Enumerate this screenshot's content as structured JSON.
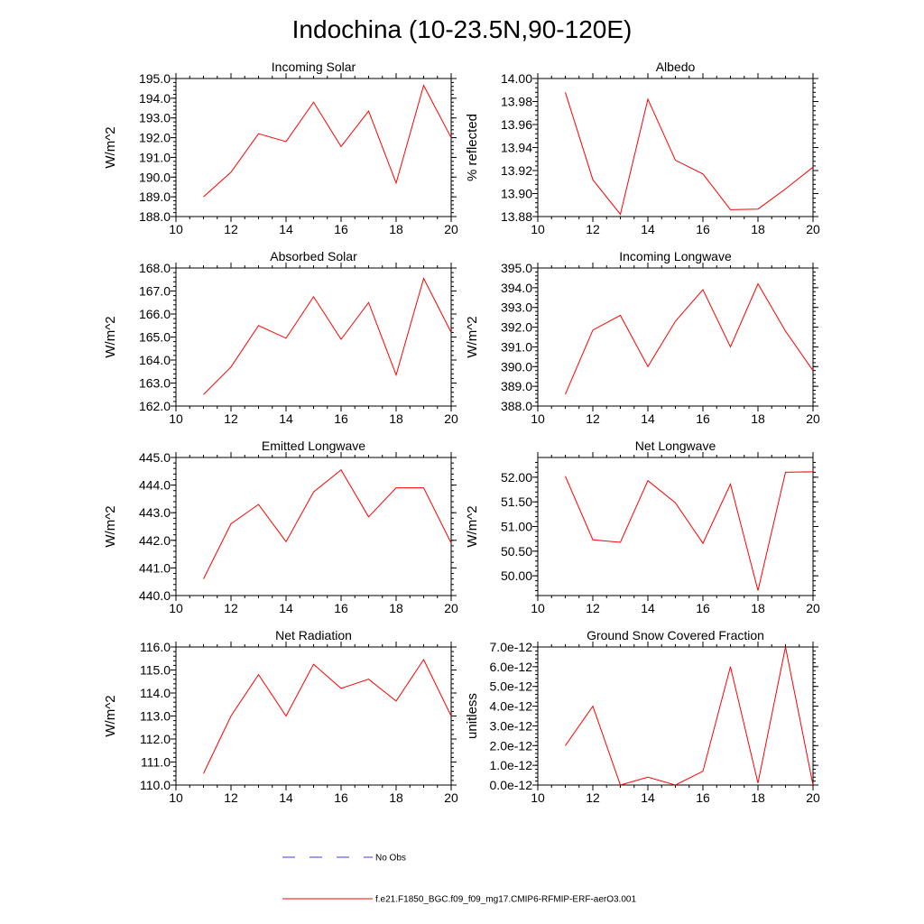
{
  "figure_title": "Indochina (10-23.5N,90-120E)",
  "legend": {
    "obs_label": "No Obs",
    "model_label": "f.e21.F1850_BGC.f09_f09_mg17.CMIP6-RFMIP-ERF-aerO3.001",
    "obs_color": "#3b3bd6",
    "model_color": "#ff0000"
  },
  "chart_data": [
    {
      "type": "line",
      "title": "Incoming Solar",
      "ylabel": "W/m^2",
      "xlabel": "",
      "xlim": [
        10,
        20
      ],
      "ylim": [
        188,
        195
      ],
      "xticks": [
        "10",
        "12",
        "14",
        "16",
        "18",
        "20"
      ],
      "yticks": [
        "188.0",
        "189.0",
        "190.0",
        "191.0",
        "192.0",
        "193.0",
        "194.0",
        "195.0"
      ],
      "x": [
        11,
        12,
        13,
        14,
        15,
        16,
        17,
        18,
        19,
        20
      ],
      "series": [
        {
          "name": "f.e21.F1850_BGC.f09_f09_mg17.CMIP6-RFMIP-ERF-aerO3.001",
          "values": [
            189.0,
            190.25,
            192.2,
            191.8,
            193.8,
            191.55,
            193.35,
            189.7,
            194.65,
            192.0
          ]
        }
      ]
    },
    {
      "type": "line",
      "title": "Albedo",
      "ylabel": "% reflected",
      "xlabel": "",
      "xlim": [
        10,
        20
      ],
      "ylim": [
        13.88,
        14.0
      ],
      "xticks": [
        "10",
        "12",
        "14",
        "16",
        "18",
        "20"
      ],
      "yticks": [
        "13.88",
        "13.90",
        "13.92",
        "13.94",
        "13.96",
        "13.98",
        "14.00"
      ],
      "x": [
        11,
        12,
        13,
        14,
        15,
        16,
        17,
        18,
        19,
        20
      ],
      "series": [
        {
          "name": "f.e21.F1850_BGC.f09_f09_mg17.CMIP6-RFMIP-ERF-aerO3.001",
          "values": [
            13.988,
            13.912,
            13.882,
            13.982,
            13.929,
            13.917,
            13.886,
            13.8865,
            13.904,
            13.923
          ]
        }
      ]
    },
    {
      "type": "line",
      "title": "Absorbed Solar",
      "ylabel": "W/m^2",
      "xlabel": "",
      "xlim": [
        10,
        20
      ],
      "ylim": [
        162,
        168
      ],
      "xticks": [
        "10",
        "12",
        "14",
        "16",
        "18",
        "20"
      ],
      "yticks": [
        "162.0",
        "163.0",
        "164.0",
        "165.0",
        "166.0",
        "167.0",
        "168.0"
      ],
      "x": [
        11,
        12,
        13,
        14,
        15,
        16,
        17,
        18,
        19,
        20
      ],
      "series": [
        {
          "name": "f.e21.F1850_BGC.f09_f09_mg17.CMIP6-RFMIP-ERF-aerO3.001",
          "values": [
            162.5,
            163.7,
            165.5,
            164.95,
            166.75,
            164.9,
            166.5,
            163.35,
            167.55,
            165.2
          ]
        }
      ]
    },
    {
      "type": "line",
      "title": "Incoming Longwave",
      "ylabel": "W/m^2",
      "xlabel": "",
      "xlim": [
        10,
        20
      ],
      "ylim": [
        388,
        395
      ],
      "xticks": [
        "10",
        "12",
        "14",
        "16",
        "18",
        "20"
      ],
      "yticks": [
        "388.0",
        "389.0",
        "390.0",
        "391.0",
        "392.0",
        "393.0",
        "394.0",
        "395.0"
      ],
      "x": [
        11,
        12,
        13,
        14,
        15,
        16,
        17,
        18,
        19,
        20
      ],
      "series": [
        {
          "name": "f.e21.F1850_BGC.f09_f09_mg17.CMIP6-RFMIP-ERF-aerO3.001",
          "values": [
            388.6,
            391.85,
            392.6,
            390.0,
            392.3,
            393.9,
            391.0,
            394.2,
            391.8,
            389.8
          ]
        }
      ]
    },
    {
      "type": "line",
      "title": "Emitted Longwave",
      "ylabel": "W/m^2",
      "xlabel": "",
      "xlim": [
        10,
        20
      ],
      "ylim": [
        440,
        445
      ],
      "xticks": [
        "10",
        "12",
        "14",
        "16",
        "18",
        "20"
      ],
      "yticks": [
        "440.0",
        "441.0",
        "442.0",
        "443.0",
        "444.0",
        "445.0"
      ],
      "x": [
        11,
        12,
        13,
        14,
        15,
        16,
        17,
        18,
        19,
        20
      ],
      "series": [
        {
          "name": "f.e21.F1850_BGC.f09_f09_mg17.CMIP6-RFMIP-ERF-aerO3.001",
          "values": [
            440.6,
            442.6,
            443.3,
            441.95,
            443.75,
            444.55,
            442.85,
            443.9,
            443.9,
            441.9
          ]
        }
      ]
    },
    {
      "type": "line",
      "title": "Net Longwave",
      "ylabel": "W/m^2",
      "xlabel": "",
      "xlim": [
        10,
        20
      ],
      "ylim": [
        49.6,
        52.4
      ],
      "xticks": [
        "10",
        "12",
        "14",
        "16",
        "18",
        "20"
      ],
      "yticks": [
        "50.00",
        "50.50",
        "51.00",
        "51.50",
        "52.00"
      ],
      "x": [
        11,
        12,
        13,
        14,
        15,
        16,
        17,
        18,
        19,
        20
      ],
      "series": [
        {
          "name": "f.e21.F1850_BGC.f09_f09_mg17.CMIP6-RFMIP-ERF-aerO3.001",
          "values": [
            52.02,
            50.73,
            50.68,
            51.93,
            51.48,
            50.66,
            51.86,
            49.7,
            52.1,
            52.11
          ]
        }
      ]
    },
    {
      "type": "line",
      "title": "Net Radiation",
      "ylabel": "W/m^2",
      "xlabel": "",
      "xlim": [
        10,
        20
      ],
      "ylim": [
        110,
        116
      ],
      "xticks": [
        "10",
        "12",
        "14",
        "16",
        "18",
        "20"
      ],
      "yticks": [
        "110.0",
        "111.0",
        "112.0",
        "113.0",
        "114.0",
        "115.0",
        "116.0"
      ],
      "x": [
        11,
        12,
        13,
        14,
        15,
        16,
        17,
        18,
        19,
        20
      ],
      "series": [
        {
          "name": "f.e21.F1850_BGC.f09_f09_mg17.CMIP6-RFMIP-ERF-aerO3.001",
          "values": [
            110.5,
            113.0,
            114.8,
            113.0,
            115.25,
            114.2,
            114.6,
            113.65,
            115.45,
            113.0
          ]
        }
      ]
    },
    {
      "type": "line",
      "title": "Ground Snow Covered Fraction",
      "ylabel": "unitless",
      "xlabel": "",
      "xlim": [
        10,
        20
      ],
      "ylim": [
        0,
        7e-12
      ],
      "xticks": [
        "10",
        "12",
        "14",
        "16",
        "18",
        "20"
      ],
      "yticks": [
        "0.0e-12",
        "1.0e-12",
        "2.0e-12",
        "3.0e-12",
        "4.0e-12",
        "5.0e-12",
        "6.0e-12",
        "7.0e-12"
      ],
      "x": [
        11,
        12,
        13,
        14,
        15,
        16,
        17,
        18,
        19,
        20
      ],
      "series": [
        {
          "name": "f.e21.F1850_BGC.f09_f09_mg17.CMIP6-RFMIP-ERF-aerO3.001",
          "values": [
            2e-12,
            4e-12,
            0,
            4e-13,
            0,
            7e-13,
            6e-12,
            1e-13,
            7e-12,
            0
          ]
        }
      ]
    }
  ]
}
